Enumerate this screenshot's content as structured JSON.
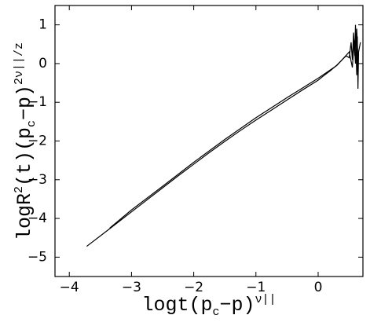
{
  "chart_data": {
    "type": "line",
    "xlabel": [
      "logt(p",
      "c",
      "−p)",
      "ν||"
    ],
    "ylabel": [
      "logR",
      "2",
      "(t)(p",
      "c",
      "−p)",
      "2ν||/z"
    ],
    "xlim": [
      -4.23,
      0.72
    ],
    "ylim": [
      -5.5,
      1.5
    ],
    "xticks": [
      {
        "value": -4,
        "label": "−4"
      },
      {
        "value": -3,
        "label": "−3"
      },
      {
        "value": -2,
        "label": "−2"
      },
      {
        "value": -1,
        "label": "−1"
      },
      0
    ],
    "yticks": [
      {
        "value": -5,
        "label": "−5"
      },
      {
        "value": -4,
        "label": "−4"
      },
      {
        "value": -3,
        "label": "−3"
      },
      {
        "value": -2,
        "label": "−2"
      },
      {
        "value": -1,
        "label": "−1"
      },
      0,
      1
    ],
    "series": [
      {
        "color": "#000000",
        "x": [
          -3.72,
          -3.5,
          -3.25,
          -3,
          -2.75,
          -2.5,
          -2.25,
          -2,
          -1.75,
          -1.5,
          -1.25,
          -1,
          -0.75,
          -0.5,
          -0.25,
          0,
          0.1,
          0.2,
          0.3,
          0.4,
          0.45,
          0.5,
          0.53,
          0.55,
          0.57,
          0.59,
          0.6,
          0.62,
          0.63,
          0.64,
          0.65,
          0.68
        ],
        "values": [
          -4.72,
          -4.45,
          -4.14,
          -3.83,
          -3.52,
          -3.21,
          -2.9,
          -2.6,
          -2.3,
          -2.01,
          -1.73,
          -1.46,
          -1.2,
          -0.94,
          -0.68,
          -0.43,
          -0.3,
          -0.18,
          -0.04,
          0.12,
          0.2,
          0.15,
          0.55,
          0.1,
          0.8,
          0.2,
          1.0,
          -0.3,
          0.7,
          -0.65,
          0.3,
          0.55
        ]
      },
      {
        "color": "#000000",
        "x": [
          -3.35,
          -3,
          -2.5,
          -2,
          -1.5,
          -1,
          -0.5,
          0,
          0.3,
          0.5,
          0.55,
          0.58,
          0.6,
          0.62,
          0.64
        ],
        "values": [
          -4.25,
          -3.78,
          -3.17,
          -2.55,
          -1.96,
          -1.4,
          -0.88,
          -0.38,
          -0.05,
          0.3,
          -0.1,
          0.6,
          0.0,
          0.9,
          0.1
        ]
      }
    ]
  }
}
